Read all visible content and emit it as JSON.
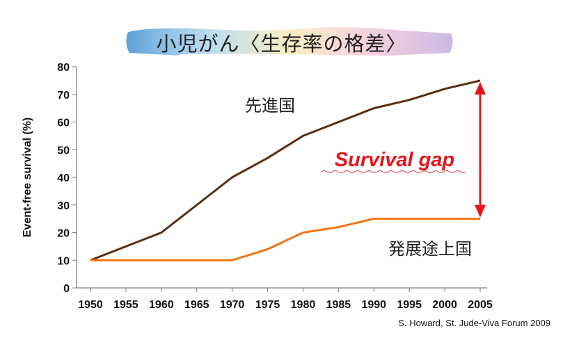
{
  "title": "小児がん〈生存率の格差〉",
  "source": "S. Howard, St. Jude-Viva Forum 2009",
  "gap_label": "Survival gap",
  "colors": {
    "developed": "#5a2d0c",
    "developing": "#f07410",
    "gap": "#e8141b"
  },
  "chart_data": {
    "type": "line",
    "title": "小児がん〈生存率の格差〉",
    "xlabel": "",
    "ylabel": "Event-free survival (%)",
    "x": [
      1950,
      1955,
      1960,
      1965,
      1970,
      1975,
      1980,
      1985,
      1990,
      1995,
      2000,
      2005
    ],
    "xticks": [
      "1950",
      "1955",
      "1960",
      "1965",
      "1970",
      "1975",
      "1980",
      "1985",
      "1990",
      "1995",
      "2000",
      "2005"
    ],
    "yticks": [
      "0",
      "10",
      "20",
      "30",
      "40",
      "50",
      "60",
      "70",
      "80"
    ],
    "ylim": [
      0,
      80
    ],
    "grid": false,
    "series": [
      {
        "name": "先進国",
        "values": [
          10,
          15,
          20,
          30,
          40,
          47,
          55,
          60,
          65,
          68,
          72,
          75
        ]
      },
      {
        "name": "発展途上国",
        "values": [
          10,
          10,
          10,
          10,
          10,
          14,
          20,
          22,
          25,
          25,
          25,
          25
        ]
      }
    ],
    "annotations": [
      {
        "text": "Survival gap",
        "x_from": 2005,
        "y_from": 25,
        "y_to": 75
      }
    ]
  }
}
